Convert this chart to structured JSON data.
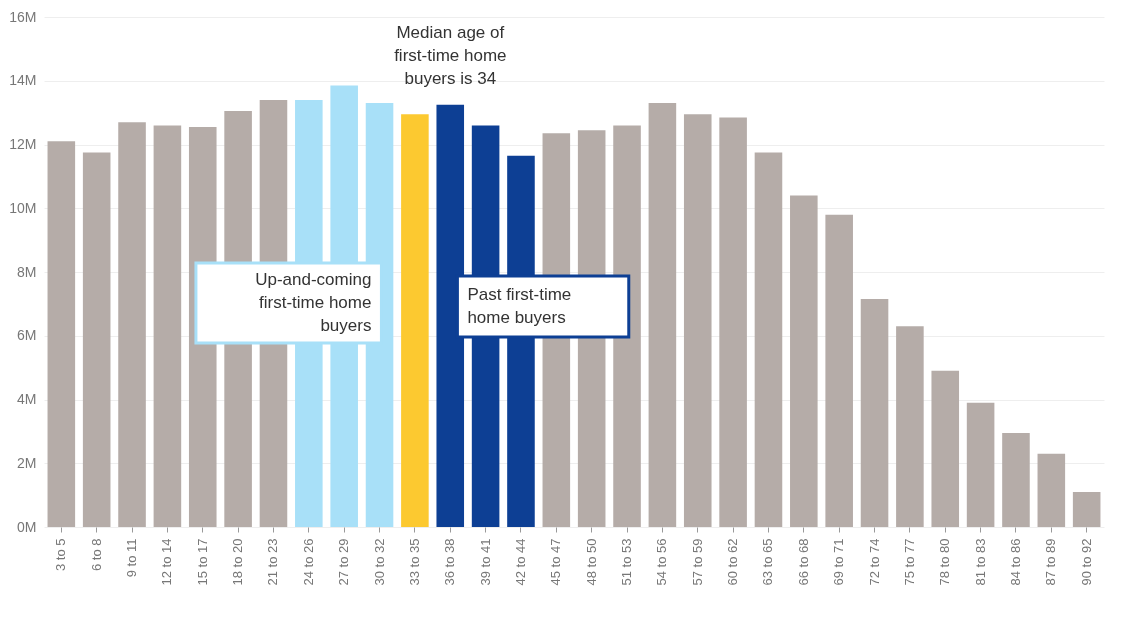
{
  "chart_data": {
    "type": "bar",
    "categories": [
      "3 to 5",
      "6 to 8",
      "9 to 11",
      "12 to 14",
      "15 to 17",
      "18 to 20",
      "21 to 23",
      "24 to 26",
      "27 to 29",
      "30 to 32",
      "33 to 35",
      "36 to 38",
      "39 to 41",
      "42 to 44",
      "45 to 47",
      "48 to 50",
      "51 to 53",
      "54 to 56",
      "57 to 59",
      "60 to 62",
      "63 to 65",
      "66 to 68",
      "69 to 71",
      "72 to 74",
      "75 to 77",
      "78 to 80",
      "81 to 83",
      "84 to 86",
      "87 to 89",
      "90 to 92"
    ],
    "values": [
      12.1,
      11.75,
      12.7,
      12.6,
      12.55,
      13.05,
      13.4,
      13.4,
      13.85,
      13.3,
      12.95,
      13.25,
      12.6,
      11.65,
      12.35,
      12.45,
      12.6,
      13.3,
      12.95,
      12.85,
      11.75,
      10.4,
      9.8,
      7.15,
      6.3,
      4.9,
      3.9,
      2.95,
      2.3,
      1.1
    ],
    "colors": [
      "#b5aca8",
      "#b5aca8",
      "#b5aca8",
      "#b5aca8",
      "#b5aca8",
      "#b5aca8",
      "#b5aca8",
      "#a8e0f8",
      "#a8e0f8",
      "#a8e0f8",
      "#fcc930",
      "#0d3f94",
      "#0d3f94",
      "#0d3f94",
      "#b5aca8",
      "#b5aca8",
      "#b5aca8",
      "#b5aca8",
      "#b5aca8",
      "#b5aca8",
      "#b5aca8",
      "#b5aca8",
      "#b5aca8",
      "#b5aca8",
      "#b5aca8",
      "#b5aca8",
      "#b5aca8",
      "#b5aca8",
      "#b5aca8",
      "#b5aca8"
    ],
    "ylim": [
      0,
      16
    ],
    "yticks": [
      {
        "value": 0,
        "label": "0M"
      },
      {
        "value": 2,
        "label": "2M"
      },
      {
        "value": 4,
        "label": "4M"
      },
      {
        "value": 6,
        "label": "6M"
      },
      {
        "value": 8,
        "label": "8M"
      },
      {
        "value": 10,
        "label": "10M"
      },
      {
        "value": 12,
        "label": "12M"
      },
      {
        "value": 14,
        "label": "14M"
      },
      {
        "value": 16,
        "label": "16M"
      }
    ],
    "grid": "y",
    "annotations": [
      "Median age of first-time home buyers is 34",
      "Up-and-coming first-time home buyers",
      "Past first-time home buyers"
    ]
  }
}
